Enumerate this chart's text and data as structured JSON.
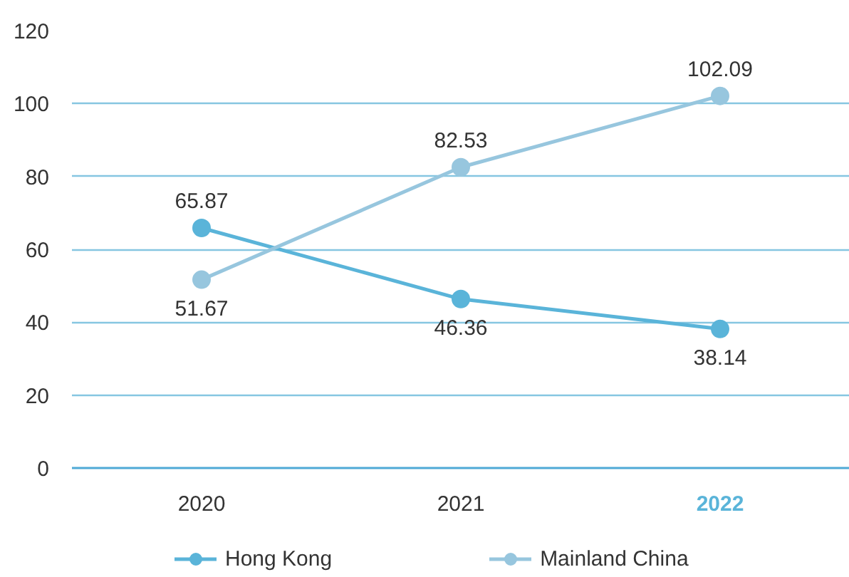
{
  "chart_data": {
    "type": "line",
    "categories": [
      "2020",
      "2021",
      "2022"
    ],
    "series": [
      {
        "name": "Hong Kong",
        "color": "#5ab4d9",
        "values": [
          65.87,
          46.36,
          38.14
        ]
      },
      {
        "name": "Mainland China",
        "color": "#97c6de",
        "values": [
          51.67,
          82.53,
          102.09
        ]
      }
    ],
    "ylim": [
      0,
      120
    ],
    "yticks": [
      0,
      20,
      40,
      60,
      80,
      100,
      120
    ],
    "grid": "y",
    "legend": "bottom",
    "marker": "circle",
    "line_style": "solid",
    "data_labels": true
  }
}
